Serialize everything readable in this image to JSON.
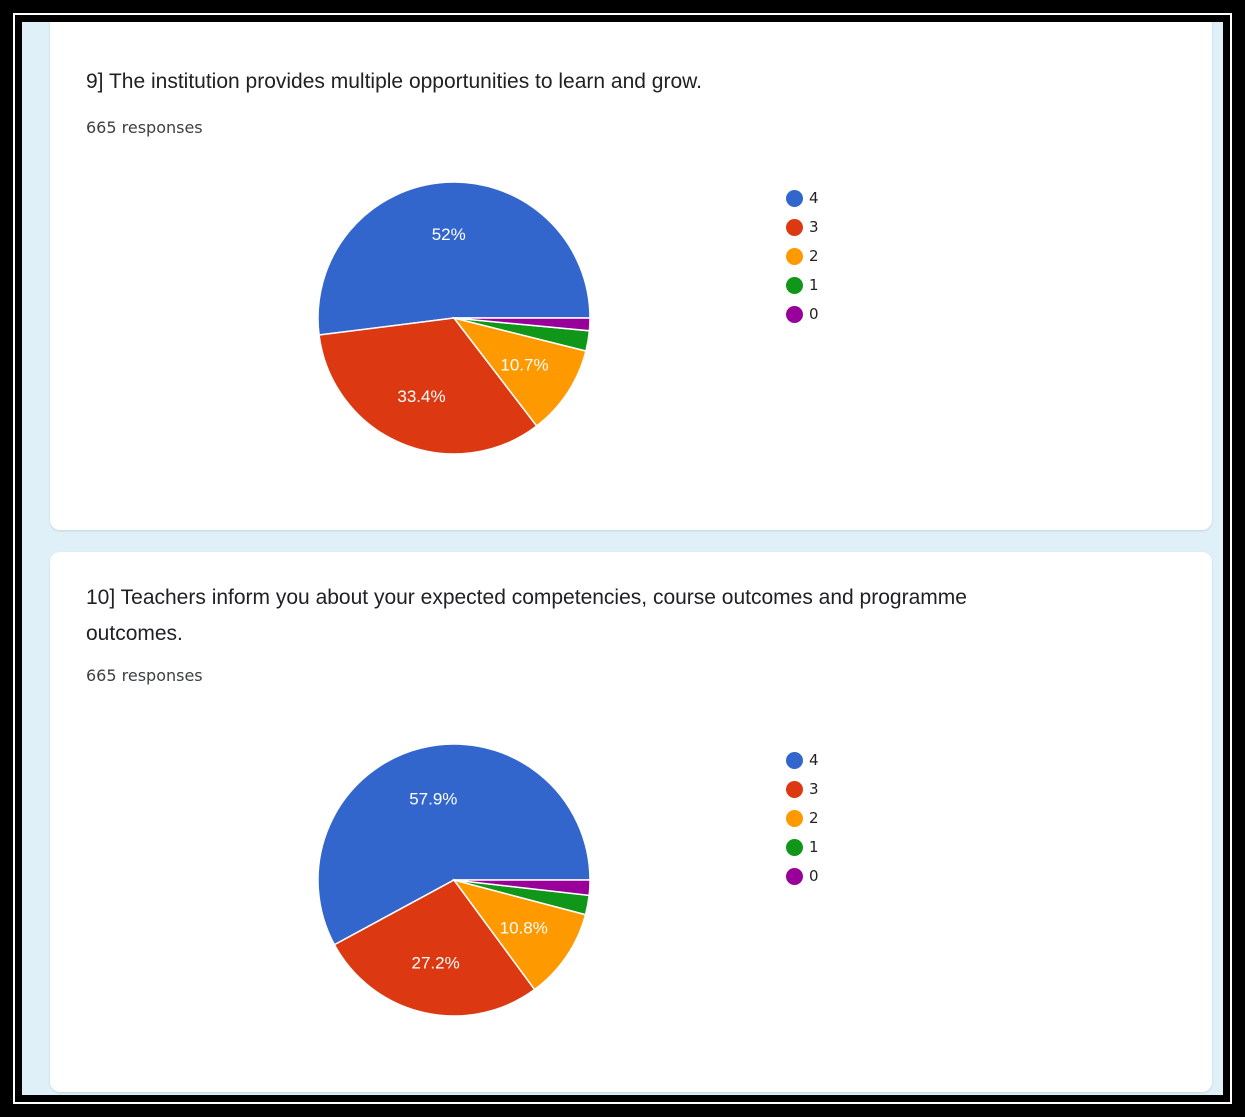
{
  "charts": [
    {
      "question": "9] The institution provides multiple opportunities to learn and grow.",
      "responses": "665 responses"
    },
    {
      "question": "10] Teachers inform you about your expected competencies, course outcomes and programme outcomes.",
      "responses": "665 responses"
    }
  ],
  "chart_data": [
    {
      "type": "pie",
      "title": "9] The institution provides multiple opportunities to learn and grow.",
      "categories": [
        "4",
        "3",
        "2",
        "1",
        "0"
      ],
      "values": [
        52.0,
        33.4,
        10.7,
        2.4,
        1.5
      ],
      "data_labels": [
        "52%",
        "33.4%",
        "10.7%",
        "",
        ""
      ],
      "colors": [
        "#3366cc",
        "#dc3912",
        "#ff9900",
        "#109618",
        "#990099"
      ],
      "legend": "right"
    },
    {
      "type": "pie",
      "title": "10] Teachers inform you about your expected competencies, course outcomes and programme outcomes.",
      "categories": [
        "4",
        "3",
        "2",
        "1",
        "0"
      ],
      "values": [
        57.9,
        27.2,
        10.8,
        2.3,
        1.8
      ],
      "data_labels": [
        "57.9%",
        "27.2%",
        "10.8%",
        "",
        ""
      ],
      "colors": [
        "#3366cc",
        "#dc3912",
        "#ff9900",
        "#109618",
        "#990099"
      ],
      "legend": "right"
    }
  ]
}
